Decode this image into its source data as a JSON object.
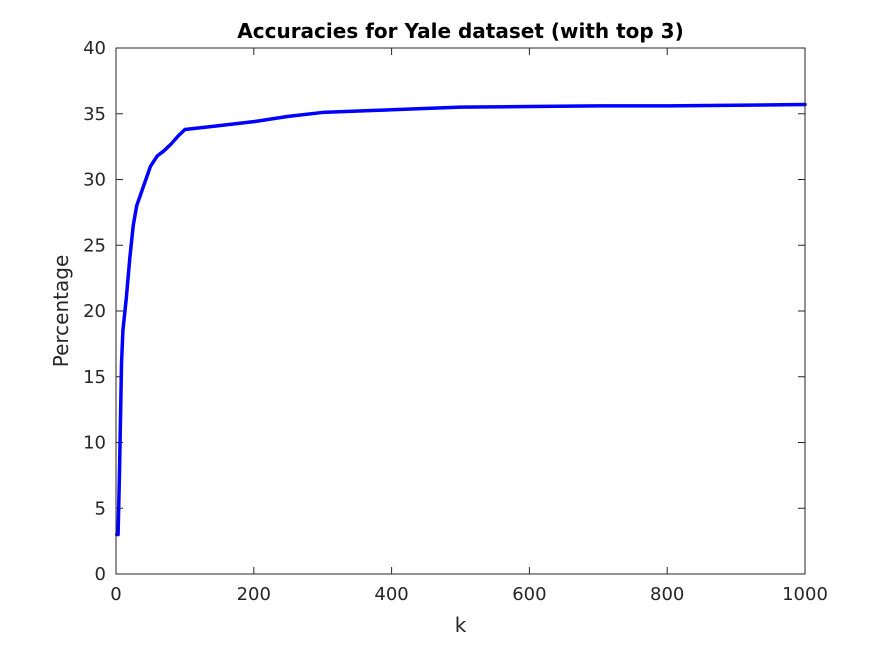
{
  "chart_data": {
    "type": "line",
    "title": "Accuracies for Yale dataset (with top 3)",
    "xlabel": "k",
    "ylabel": "Percentage",
    "xlim": [
      0,
      1000
    ],
    "ylim": [
      0,
      40
    ],
    "xticks": [
      0,
      200,
      400,
      600,
      800,
      1000
    ],
    "yticks": [
      0,
      5,
      10,
      15,
      20,
      25,
      30,
      35,
      40
    ],
    "grid": false,
    "legend": "none",
    "series": [
      {
        "color": "#0000ff",
        "x": [
          1,
          3,
          5,
          8,
          10,
          15,
          20,
          25,
          30,
          40,
          50,
          60,
          70,
          80,
          90,
          100,
          150,
          200,
          250,
          300,
          400,
          500,
          600,
          700,
          800,
          900,
          1000
        ],
        "y": [
          3.0,
          3.0,
          7.5,
          16.0,
          18.5,
          21.0,
          24.0,
          26.5,
          28.0,
          29.5,
          31.0,
          31.8,
          32.2,
          32.7,
          33.3,
          33.8,
          34.1,
          34.4,
          34.8,
          35.1,
          35.3,
          35.5,
          35.55,
          35.6,
          35.6,
          35.65,
          35.7
        ]
      }
    ]
  }
}
